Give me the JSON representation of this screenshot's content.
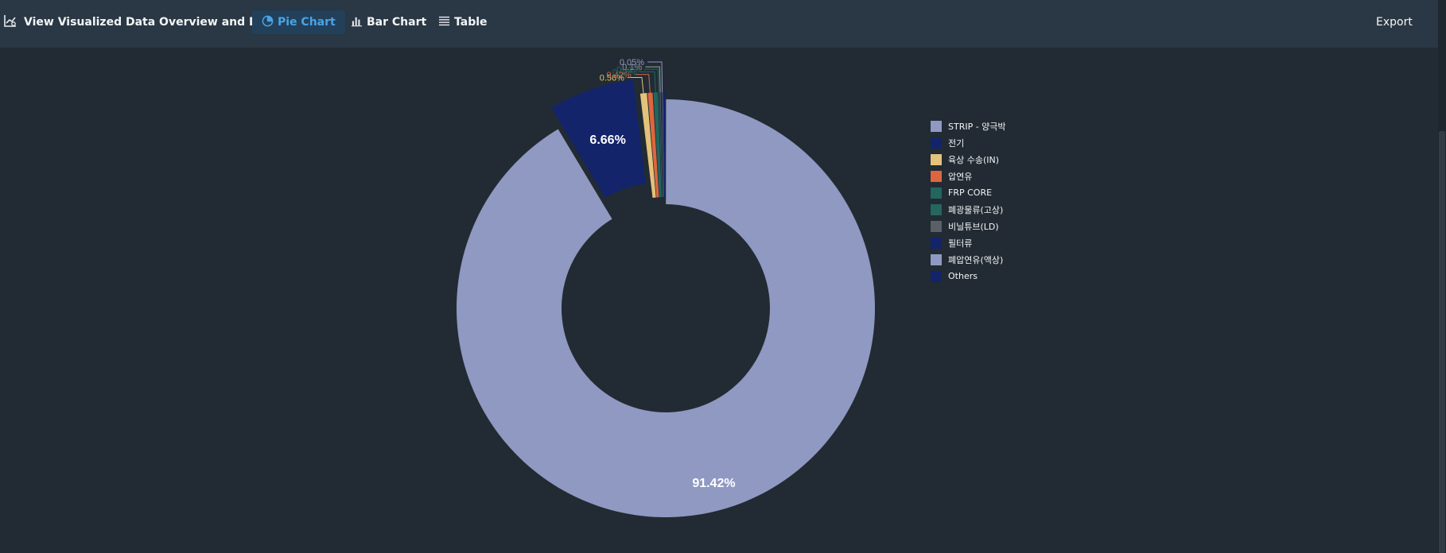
{
  "header": {
    "title": "View Visualized Data Overview and Details",
    "tabs": [
      {
        "label": "Pie Chart",
        "icon": "pie-chart-icon",
        "active": true
      },
      {
        "label": "Bar Chart",
        "icon": "bar-chart-icon",
        "active": false
      },
      {
        "label": "Table",
        "icon": "table-icon",
        "active": false
      }
    ],
    "export_label": "Export"
  },
  "colors": {
    "background": "#222b33",
    "header": "#2a3744",
    "active_tab_bg": "#23405a",
    "active_tab_text": "#4aa3e6"
  },
  "chart_data": {
    "type": "pie",
    "variant": "donut",
    "legend_position": "right",
    "slices": [
      {
        "label": "STRIP - 양극박",
        "value": 91.42,
        "value_label": "91.42%",
        "color": "#8f99c2"
      },
      {
        "label": "전기",
        "value": 6.66,
        "value_label": "6.66%",
        "color": "#13246b"
      },
      {
        "label": "육상 수송(IN)",
        "value": 0.56,
        "value_label": "0.56%",
        "color": "#e3c27a"
      },
      {
        "label": "압연유",
        "value": 0.42,
        "value_label": "0.42%",
        "color": "#dd6640"
      },
      {
        "label": "FRP CORE",
        "value": 0.38,
        "value_label": "0.38%",
        "color": "#23655f"
      },
      {
        "label": "폐광물류(고상)",
        "value": 0.11,
        "value_label": "0.11%",
        "color": "#25665f"
      },
      {
        "label": "비닐튜브(LD)",
        "value": 0.1,
        "value_label": "0.1%",
        "color": "#5b6068"
      },
      {
        "label": "필터류",
        "value": 0.07,
        "value_label": "",
        "color": "#13246b"
      },
      {
        "label": "폐압연유(액상)",
        "value": 0.05,
        "value_label": "0.05%",
        "color": "#8f99c2"
      },
      {
        "label": "Others",
        "value": 0.23,
        "value_label": "",
        "color": "#13246b"
      }
    ]
  }
}
